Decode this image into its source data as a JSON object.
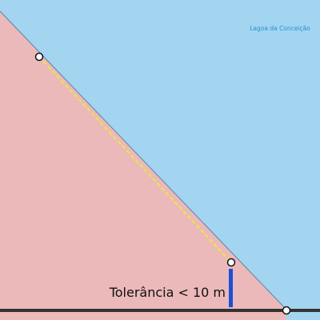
{
  "map": {
    "water_label": "Lagoa da Conceição",
    "tolerance_label": "Tolerância < 10 m"
  },
  "colors": {
    "water": "#a3d4f0",
    "land": "#ebb9b9",
    "shoreline": "#5a86a8",
    "snapped_segment": "#e8ea3c",
    "vertex_fill": "#ffffff",
    "vertex_stroke": "#111111",
    "tolerance_bar": "#1a4fd6",
    "road": "#333333",
    "label_water": "#1f94d2"
  },
  "icons": {
    "vertex": "vertex-circle-icon",
    "tolerance": "tolerance-bar-icon"
  }
}
